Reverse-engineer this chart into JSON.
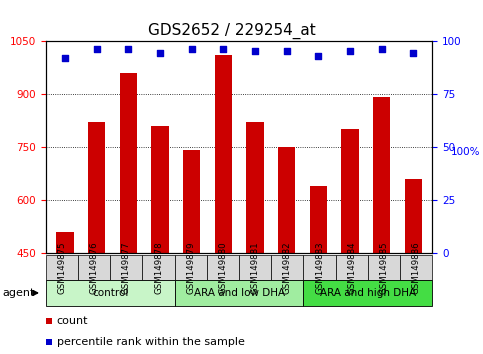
{
  "title": "GDS2652 / 229254_at",
  "samples": [
    "GSM149875",
    "GSM149876",
    "GSM149877",
    "GSM149878",
    "GSM149879",
    "GSM149880",
    "GSM149881",
    "GSM149882",
    "GSM149883",
    "GSM149884",
    "GSM149885",
    "GSM149886"
  ],
  "counts": [
    510,
    820,
    960,
    810,
    740,
    1010,
    820,
    750,
    640,
    800,
    890,
    660
  ],
  "percentiles": [
    92,
    96,
    96,
    94,
    96,
    96,
    95,
    95,
    93,
    95,
    96,
    94
  ],
  "bar_color": "#cc0000",
  "dot_color": "#0000cc",
  "ylim_left": [
    450,
    1050
  ],
  "ylim_right": [
    0,
    100
  ],
  "yticks_left": [
    450,
    600,
    750,
    900,
    1050
  ],
  "yticks_right": [
    0,
    25,
    50,
    75,
    100
  ],
  "groups": [
    {
      "label": "control",
      "start": 0,
      "end": 3,
      "color": "#c8f5c8"
    },
    {
      "label": "ARA and low DHA",
      "start": 4,
      "end": 7,
      "color": "#a0eda0"
    },
    {
      "label": "ARA and high DHA",
      "start": 8,
      "end": 11,
      "color": "#44dd44"
    }
  ],
  "agent_label": "agent",
  "legend_count": "count",
  "legend_percentile": "percentile rank within the sample",
  "background_color": "#ffffff",
  "bar_width": 0.55,
  "title_fontsize": 11,
  "tick_fontsize": 7.5,
  "label_fontsize": 8
}
